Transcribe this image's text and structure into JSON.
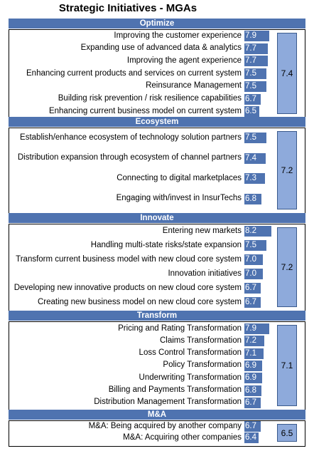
{
  "chart_data": {
    "type": "bar",
    "title": "Strategic Initiatives - MGAs",
    "colors": {
      "header": "#4f73b0",
      "bar": "#4f73b0",
      "avg_bar": "#8eaadb"
    },
    "sections": [
      {
        "name": "Optimize",
        "average": 7.4,
        "items": [
          {
            "label": "Improving the customer experience",
            "value": 7.9
          },
          {
            "label": "Expanding use of advanced data & analytics",
            "value": 7.7
          },
          {
            "label": "Improving the agent experience",
            "value": 7.7
          },
          {
            "label": "Enhancing current products and services on current system",
            "value": 7.5
          },
          {
            "label": "Reinsurance Management",
            "value": 7.5
          },
          {
            "label": "Building risk prevention / risk resilience capabilities",
            "value": 6.7
          },
          {
            "label": "Enhancing current business model on current system",
            "value": 6.5
          }
        ]
      },
      {
        "name": "Ecosystem",
        "average": 7.2,
        "items": [
          {
            "label": "Establish/enhance ecosystem of technology solution partners",
            "value": 7.5
          },
          {
            "label": "Distribution expansion through ecosystem of channel partners",
            "value": 7.4
          },
          {
            "label": "Connecting to digital marketplaces",
            "value": 7.3
          },
          {
            "label": "Engaging with/invest in InsurTechs",
            "value": 6.8
          }
        ]
      },
      {
        "name": "Innovate",
        "average": 7.2,
        "items": [
          {
            "label": "Entering new markets",
            "value": 8.2
          },
          {
            "label": "Handling multi-state risks/state expansion",
            "value": 7.5
          },
          {
            "label": "Transform current business model with new cloud core system",
            "value": 7.0
          },
          {
            "label": "Innovation initiatives",
            "value": 7.0
          },
          {
            "label": "Developing new innovative products on new cloud core system",
            "value": 6.7
          },
          {
            "label": "Creating new business model on new cloud core system",
            "value": 6.7
          }
        ]
      },
      {
        "name": "Transform",
        "average": 7.1,
        "items": [
          {
            "label": "Pricing and Rating Transformation",
            "value": 7.9
          },
          {
            "label": "Claims Transformation",
            "value": 7.2
          },
          {
            "label": "Loss Control Transformation",
            "value": 7.1
          },
          {
            "label": "Policy Transformation",
            "value": 6.9
          },
          {
            "label": "Underwriting Transformation",
            "value": 6.9
          },
          {
            "label": "Billing and Payments Transformation",
            "value": 6.8
          },
          {
            "label": "Distribution Management Transformation",
            "value": 6.7
          }
        ]
      },
      {
        "name": "M&A",
        "average": 6.5,
        "items": [
          {
            "label": "M&A: Being acquired by another company",
            "value": 6.7
          },
          {
            "label": "M&A: Acquiring other companies",
            "value": 6.4
          }
        ]
      }
    ]
  }
}
